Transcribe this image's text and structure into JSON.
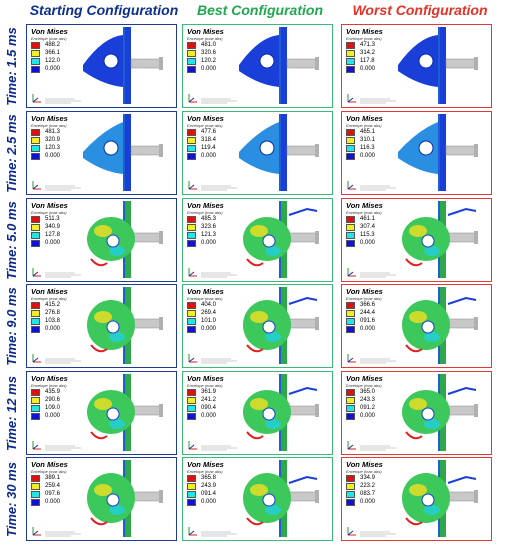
{
  "columns": [
    {
      "title": "Starting Configuration",
      "color": "#0d2f8c"
    },
    {
      "title": "Best Configuration",
      "color": "#21a84f"
    },
    {
      "title": "Worst Configuration",
      "color": "#e53227"
    }
  ],
  "legend": {
    "title": "Von Mises",
    "subtitle": "Envelope (max abs)",
    "colors": [
      "#e01010",
      "#f2ee20",
      "#20e6e6",
      "#1010d8"
    ]
  },
  "rows": [
    {
      "time": "Time: 1.5 ms",
      "panels": [
        {
          "values": [
            "488.2",
            "366.1",
            "122.0",
            "0.000"
          ]
        },
        {
          "values": [
            "481.0",
            "320.6",
            "120.2",
            "0.000"
          ]
        },
        {
          "values": [
            "471.3",
            "314.2",
            "117.8",
            "0.000"
          ]
        }
      ]
    },
    {
      "time": "Time: 2.5 ms",
      "panels": [
        {
          "values": [
            "481.3",
            "320.9",
            "120.3",
            "0.000"
          ]
        },
        {
          "values": [
            "477.6",
            "318.4",
            "119.4",
            "0.000"
          ]
        },
        {
          "values": [
            "465.1",
            "310.1",
            "116.3",
            "0.000"
          ]
        }
      ]
    },
    {
      "time": "Time: 5.0 ms",
      "panels": [
        {
          "values": [
            "511.3",
            "340.9",
            "127.8",
            "0.000"
          ]
        },
        {
          "values": [
            "485.3",
            "323.6",
            "121.3",
            "0.000"
          ]
        },
        {
          "values": [
            "461.1",
            "307.4",
            "115.3",
            "0.000"
          ]
        }
      ]
    },
    {
      "time": "Time: 9.0 ms",
      "panels": [
        {
          "values": [
            "415.2",
            "276.8",
            "103.8",
            "0.000"
          ]
        },
        {
          "values": [
            "404.0",
            "269.4",
            "101.0",
            "0.000"
          ]
        },
        {
          "values": [
            "366.6",
            "244.4",
            "091.6",
            "0.000"
          ]
        }
      ]
    },
    {
      "time": "Time: 12 ms",
      "panels": [
        {
          "values": [
            "435.9",
            "290.6",
            "109.0",
            "0.000"
          ]
        },
        {
          "values": [
            "361.9",
            "241.2",
            "090.4",
            "0.000"
          ]
        },
        {
          "values": [
            "365.0",
            "243.3",
            "091.2",
            "0.000"
          ]
        }
      ]
    },
    {
      "time": "Time: 30 ms",
      "panels": [
        {
          "values": [
            "389.1",
            "259.4",
            "097.6",
            "0.000"
          ]
        },
        {
          "values": [
            "365.8",
            "243.9",
            "091.4",
            "0.000"
          ]
        },
        {
          "values": [
            "334.9",
            "223.2",
            "083.7",
            "0.000"
          ]
        }
      ]
    }
  ]
}
